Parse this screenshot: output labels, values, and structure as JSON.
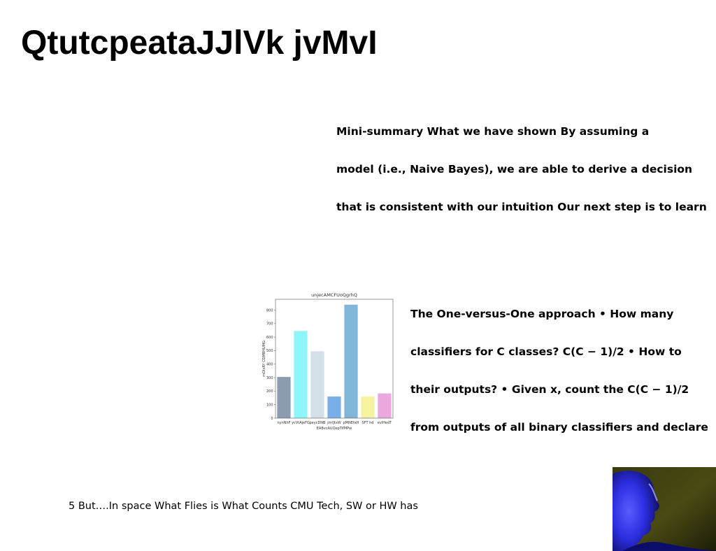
{
  "slide": {
    "title": "QtutcpeataJJlVk jvMvI",
    "summary_lines": [
      "Mini-summary What we have shown By assuming a",
      "model (i.e., Naive Bayes), we are able to derive a decision",
      "that is consistent with our intuition Our next step is to learn"
    ],
    "ovo_lines": [
      "The One-versus-One approach • How many",
      "classifiers for C classes? C(C − 1)/2 • How to",
      "their outputs? • Given x, count the C(C − 1)/2",
      "from outputs of all binary classifiers and declare"
    ],
    "footer": "5 But….In space What Flies is What Counts CMU Tech, SW or HW has"
  },
  "chart_data": {
    "type": "bar",
    "title": "unjecAMCFUoQgrhQ",
    "xlabel": "EABvcAUQepTifMPw",
    "ylabel": "mOIxRY CDMBHUMG",
    "categories": [
      "nynNhF",
      "ycVtAjeFG",
      "peycDNB",
      "jmtJtxW",
      "pMNEfaH",
      "SFT hd",
      "evlHedT"
    ],
    "values": [
      305,
      645,
      495,
      160,
      840,
      160,
      183
    ],
    "colors": [
      "#8c9baf",
      "#8ef6fb",
      "#d3e0e8",
      "#7aaee8",
      "#80b7d8",
      "#f6f4a0",
      "#eba7de"
    ],
    "ylim": [
      0,
      880
    ],
    "yticks": [
      0,
      100,
      200,
      300,
      400,
      500,
      600,
      700,
      800
    ],
    "grid": false,
    "legend": "none"
  },
  "photo": {
    "icon": "person-profile-photo"
  }
}
